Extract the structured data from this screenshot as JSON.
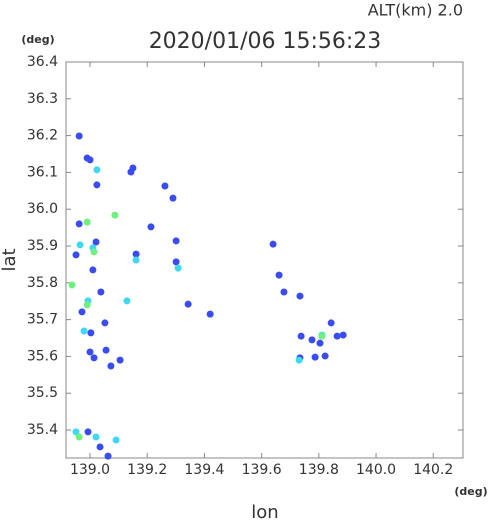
{
  "chart_data": {
    "type": "scatter",
    "subtitle": "ALT(km) 2.0",
    "title": "2020/01/06 15:56:23",
    "y_unit": "(deg)",
    "x_unit": "(deg)",
    "y_label": "lat",
    "x_label": "lon",
    "xlim": [
      138.916,
      140.304
    ],
    "ylim": [
      35.324,
      36.4
    ],
    "xticks": [
      {
        "value": 139.0,
        "label": "139.0"
      },
      {
        "value": 139.2,
        "label": "139.2"
      },
      {
        "value": 139.4,
        "label": "139.4"
      },
      {
        "value": 139.6,
        "label": "139.6"
      },
      {
        "value": 139.8,
        "label": "139.8"
      },
      {
        "value": 140.0,
        "label": "140.0"
      },
      {
        "value": 140.2,
        "label": "140.2"
      }
    ],
    "yticks": [
      35.4,
      35.5,
      35.6,
      35.7,
      35.8,
      35.9,
      {
        "value": 36.0,
        "label": "36.0"
      },
      36.1,
      36.2,
      36.3,
      36.4
    ],
    "series": [
      {
        "color": "#3a4cf0",
        "x": [
          138.962,
          138.99,
          139.0,
          139.024,
          138.962,
          139.021,
          138.951,
          139.01,
          139.038,
          138.972,
          139.052,
          139.003,
          139.056,
          139.0,
          139.014,
          139.073,
          139.105,
          138.993,
          139.035,
          139.063,
          139.15,
          139.143,
          139.262,
          139.29,
          139.301,
          139.343,
          139.42,
          139.64,
          139.661,
          139.678,
          139.738,
          139.804,
          139.864,
          139.787,
          139.822,
          139.776,
          139.885,
          139.843,
          139.734,
          139.161,
          139.301,
          139.734,
          139.213
        ],
        "values": [
          36.199,
          36.139,
          36.134,
          36.066,
          35.96,
          35.911,
          35.876,
          35.835,
          35.775,
          35.721,
          35.691,
          35.664,
          35.617,
          35.612,
          35.596,
          35.574,
          35.59,
          35.395,
          35.354,
          35.329,
          36.112,
          36.101,
          36.063,
          36.03,
          35.914,
          35.742,
          35.715,
          35.905,
          35.821,
          35.775,
          35.655,
          35.636,
          35.655,
          35.598,
          35.601,
          35.645,
          35.658,
          35.691,
          35.596,
          35.878,
          35.857,
          35.764,
          35.952
        ]
      },
      {
        "color": "#40d8f0",
        "x": [
          139.024,
          138.965,
          139.01,
          138.993,
          138.979,
          138.951,
          139.021,
          139.091,
          139.129,
          139.308,
          139.811,
          139.731,
          139.161
        ],
        "values": [
          36.107,
          35.903,
          35.895,
          35.751,
          35.669,
          35.395,
          35.381,
          35.373,
          35.751,
          35.84,
          35.658,
          35.59,
          35.862
        ]
      },
      {
        "color": "#70f080",
        "x": [
          139.087,
          138.99,
          139.014,
          138.937,
          138.99,
          138.962,
          139.811
        ],
        "values": [
          35.984,
          35.965,
          35.884,
          35.794,
          35.74,
          35.381,
          35.655
        ]
      }
    ]
  }
}
